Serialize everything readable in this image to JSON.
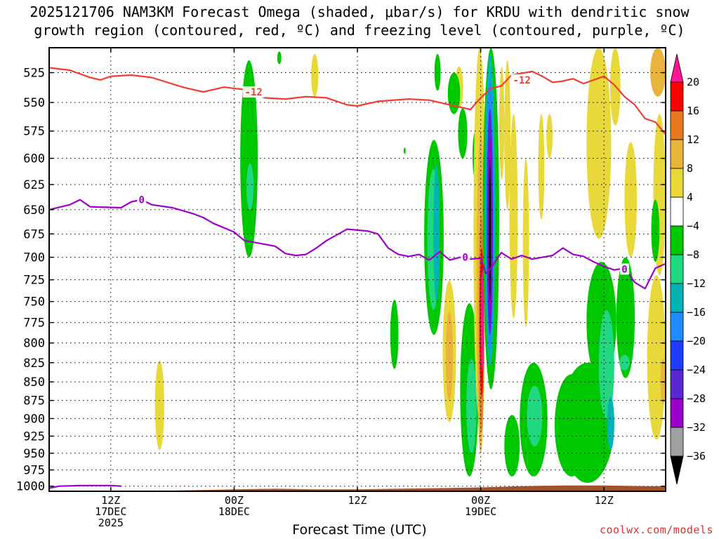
{
  "title": {
    "line1": "2025121706 NAM3KM Forecast Omega (shaded, μbar/s) for KRDU with dendritic snow",
    "line2": "growth region (contoured, red, ºC) and freezing level (contoured, purple, ºC)"
  },
  "credit": "coolwx.com/models",
  "chart_data": {
    "type": "heatmap",
    "title": "2025121706 NAM3KM Forecast Omega (shaded, μbar/s) for KRDU with dendritic snow growth region (contoured, red, ºC) and freezing level (contoured, purple, ºC)",
    "xlabel": "Forecast Time (UTC)",
    "ylabel": "",
    "x_ticks": [
      {
        "hour": 12,
        "lines": [
          "12Z",
          "17DEC",
          "2025"
        ]
      },
      {
        "hour": 24,
        "lines": [
          "00Z",
          "18DEC"
        ]
      },
      {
        "hour": 36,
        "lines": [
          "12Z"
        ]
      },
      {
        "hour": 48,
        "lines": [
          "00Z",
          "19DEC"
        ]
      },
      {
        "hour": 60,
        "lines": [
          "12Z"
        ]
      }
    ],
    "xlim": [
      6,
      66
    ],
    "y_ticks": [
      525,
      550,
      575,
      600,
      625,
      650,
      675,
      700,
      725,
      750,
      775,
      800,
      825,
      850,
      875,
      900,
      925,
      950,
      975,
      1000
    ],
    "ylim": [
      505,
      1008
    ],
    "y_scale": "log",
    "grid": true,
    "colorbar": {
      "labels": [
        "20",
        "16",
        "12",
        "8",
        "4",
        "−4",
        "−8",
        "−12",
        "−16",
        "−20",
        "−24",
        "−28",
        "−32",
        "−36"
      ],
      "levels": [
        20,
        16,
        12,
        8,
        4,
        -4,
        -8,
        -12,
        -16,
        -20,
        -24,
        -28,
        -32,
        -36
      ],
      "colors": [
        "#ff0000",
        "#e87a1e",
        "#e8b43c",
        "#e8d83a",
        "#ffffff",
        "#00c800",
        "#20d880",
        "#00b4b4",
        "#1e8cff",
        "#1e3cff",
        "#5a28d2",
        "#9600c8",
        "#a0a0a0",
        "#000000"
      ],
      "top_color": "#ff1493",
      "bottom_color": "#000000"
    },
    "contours": [
      {
        "name": "-12",
        "color": "#f03c32",
        "label_points": [
          [
            25.9,
            541
          ],
          [
            52.0,
            531
          ]
        ],
        "points": [
          [
            6,
            521
          ],
          [
            8,
            523
          ],
          [
            10,
            529
          ],
          [
            11,
            531
          ],
          [
            12,
            528
          ],
          [
            14,
            527
          ],
          [
            16,
            529
          ],
          [
            19,
            537
          ],
          [
            21,
            541
          ],
          [
            23,
            537
          ],
          [
            25,
            539
          ],
          [
            26,
            543
          ],
          [
            27,
            546
          ],
          [
            29,
            547
          ],
          [
            31,
            545
          ],
          [
            33,
            546
          ],
          [
            35,
            552
          ],
          [
            36,
            553
          ],
          [
            38,
            549
          ],
          [
            41,
            547
          ],
          [
            43,
            548
          ],
          [
            44,
            550
          ],
          [
            46,
            554
          ],
          [
            47,
            556
          ],
          [
            48,
            546
          ],
          [
            49,
            538
          ],
          [
            50,
            536
          ],
          [
            51,
            527
          ],
          [
            53,
            524
          ],
          [
            54,
            528
          ],
          [
            55,
            533
          ],
          [
            56,
            532
          ],
          [
            57,
            530
          ],
          [
            58,
            534
          ],
          [
            59,
            531
          ],
          [
            60,
            528
          ],
          [
            61,
            535
          ],
          [
            62,
            545
          ],
          [
            63,
            552
          ],
          [
            64,
            564
          ],
          [
            65,
            567
          ],
          [
            66,
            578
          ]
        ]
      },
      {
        "name": "0",
        "color": "#a000c8",
        "label_points": [
          [
            15.0,
            640
          ],
          [
            46.5,
            700
          ],
          [
            62.0,
            713
          ]
        ],
        "points": [
          [
            6,
            650
          ],
          [
            8,
            645
          ],
          [
            9,
            640
          ],
          [
            10,
            647
          ],
          [
            13,
            648
          ],
          [
            14,
            642
          ],
          [
            15,
            640
          ],
          [
            16,
            645
          ],
          [
            18,
            648
          ],
          [
            20,
            654
          ],
          [
            21,
            658
          ],
          [
            22,
            664
          ],
          [
            24,
            673
          ],
          [
            25,
            682
          ],
          [
            26,
            684
          ],
          [
            28,
            688
          ],
          [
            29,
            696
          ],
          [
            30,
            698
          ],
          [
            31,
            697
          ],
          [
            32,
            690
          ],
          [
            33,
            682
          ],
          [
            34,
            676
          ],
          [
            35,
            670
          ],
          [
            37,
            672
          ],
          [
            38,
            675
          ],
          [
            39,
            690
          ],
          [
            40,
            697
          ],
          [
            41,
            699
          ],
          [
            42,
            697
          ],
          [
            43,
            703
          ],
          [
            44,
            694
          ],
          [
            45,
            703
          ],
          [
            46,
            700
          ],
          [
            47,
            702
          ],
          [
            48,
            701
          ],
          [
            48.5,
            718
          ],
          [
            49,
            712
          ],
          [
            50,
            695
          ],
          [
            51,
            702
          ],
          [
            52,
            698
          ],
          [
            53,
            702
          ],
          [
            54,
            700
          ],
          [
            55,
            698
          ],
          [
            56,
            690
          ],
          [
            57,
            697
          ],
          [
            58,
            699
          ],
          [
            59,
            705
          ],
          [
            60,
            710
          ],
          [
            61,
            714
          ],
          [
            62,
            712
          ],
          [
            63,
            728
          ],
          [
            64,
            735
          ],
          [
            65,
            712
          ],
          [
            66,
            707
          ]
        ]
      },
      {
        "name": "surface",
        "color": "#a000c8",
        "label_points": [],
        "points": [
          [
            6,
            1003
          ],
          [
            7,
            1000
          ],
          [
            9,
            999
          ],
          [
            10,
            999
          ],
          [
            12,
            999
          ],
          [
            13,
            1000
          ]
        ]
      }
    ],
    "cells": [
      {
        "t0": 24.6,
        "t1": 26.3,
        "p0": 515,
        "p1": 700,
        "v": -6
      },
      {
        "t0": 25.2,
        "t1": 25.9,
        "p0": 605,
        "p1": 650,
        "v": -9
      },
      {
        "t0": 28.2,
        "t1": 28.6,
        "p0": 508,
        "p1": 518,
        "v": -5
      },
      {
        "t0": 31.5,
        "t1": 32.2,
        "p0": 510,
        "p1": 545,
        "v": 5
      },
      {
        "t0": 16.3,
        "t1": 17.2,
        "p0": 822,
        "p1": 945,
        "v": 5
      },
      {
        "t0": 39.2,
        "t1": 40.0,
        "p0": 748,
        "p1": 833,
        "v": -6
      },
      {
        "t0": 42.5,
        "t1": 44.4,
        "p0": 583,
        "p1": 790,
        "v": -6
      },
      {
        "t0": 42.8,
        "t1": 44.0,
        "p0": 610,
        "p1": 760,
        "v": -10
      },
      {
        "t0": 43.4,
        "t1": 44.0,
        "p0": 605,
        "p1": 750,
        "v": -14
      },
      {
        "t0": 43.5,
        "t1": 44.1,
        "p0": 510,
        "p1": 540,
        "v": -6
      },
      {
        "t0": 44.3,
        "t1": 45.6,
        "p0": 726,
        "p1": 905,
        "v": 6
      },
      {
        "t0": 44.6,
        "t1": 45.3,
        "p0": 762,
        "p1": 875,
        "v": 10
      },
      {
        "t0": 40.5,
        "t1": 40.7,
        "p0": 590,
        "p1": 596,
        "v": -6
      },
      {
        "t0": 45.5,
        "t1": 46.3,
        "p0": 520,
        "p1": 555,
        "v": 5
      },
      {
        "t0": 45.8,
        "t1": 46.7,
        "p0": 555,
        "p1": 600,
        "v": -5
      },
      {
        "t0": 44.8,
        "t1": 46.0,
        "p0": 525,
        "p1": 560,
        "v": -5
      },
      {
        "t0": 46.0,
        "t1": 47.8,
        "p0": 752,
        "p1": 985,
        "v": -7
      },
      {
        "t0": 46.6,
        "t1": 47.6,
        "p0": 820,
        "p1": 950,
        "v": -9
      },
      {
        "t0": 47.2,
        "t1": 47.8,
        "p0": 575,
        "p1": 620,
        "v": -5
      },
      {
        "t0": 47.3,
        "t1": 48.5,
        "p0": 505,
        "p1": 905,
        "v": 5
      },
      {
        "t0": 47.6,
        "t1": 48.4,
        "p0": 575,
        "p1": 950,
        "v": 8
      },
      {
        "t0": 47.8,
        "t1": 48.3,
        "p0": 655,
        "p1": 920,
        "v": 14
      },
      {
        "t0": 47.9,
        "t1": 48.3,
        "p0": 690,
        "p1": 870,
        "v": 18
      },
      {
        "t0": 48.0,
        "t1": 48.3,
        "p0": 715,
        "p1": 835,
        "v": 24
      },
      {
        "t0": 48.2,
        "t1": 49.8,
        "p0": 505,
        "p1": 860,
        "v": -7
      },
      {
        "t0": 48.4,
        "t1": 49.4,
        "p0": 510,
        "p1": 830,
        "v": -13
      },
      {
        "t0": 48.5,
        "t1": 49.3,
        "p0": 530,
        "p1": 810,
        "v": -18
      },
      {
        "t0": 48.6,
        "t1": 49.2,
        "p0": 555,
        "p1": 790,
        "v": -26
      },
      {
        "t0": 48.7,
        "t1": 49.1,
        "p0": 580,
        "p1": 770,
        "v": -32
      },
      {
        "t0": 48.8,
        "t1": 49.0,
        "p0": 600,
        "p1": 750,
        "v": -40
      },
      {
        "t0": 50.3,
        "t1": 50.9,
        "p0": 515,
        "p1": 650,
        "v": 5
      },
      {
        "t0": 49.8,
        "t1": 50.3,
        "p0": 520,
        "p1": 620,
        "v": 5
      },
      {
        "t0": 50.8,
        "t1": 51.6,
        "p0": 560,
        "p1": 770,
        "v": 5
      },
      {
        "t0": 51.1,
        "t1": 51.4,
        "p0": 690,
        "p1": 720,
        "v": 5
      },
      {
        "t0": 52.1,
        "t1": 52.7,
        "p0": 600,
        "p1": 780,
        "v": 5
      },
      {
        "t0": 53.6,
        "t1": 54.2,
        "p0": 560,
        "p1": 660,
        "v": 5
      },
      {
        "t0": 54.4,
        "t1": 55.0,
        "p0": 560,
        "p1": 600,
        "v": 5
      },
      {
        "t0": 58.3,
        "t1": 60.7,
        "p0": 505,
        "p1": 680,
        "v": 5
      },
      {
        "t0": 60.6,
        "t1": 61.6,
        "p0": 505,
        "p1": 570,
        "v": 5
      },
      {
        "t0": 62.0,
        "t1": 63.2,
        "p0": 585,
        "p1": 700,
        "v": 5
      },
      {
        "t0": 64.5,
        "t1": 66.0,
        "p0": 505,
        "p1": 545,
        "v": 10
      },
      {
        "t0": 64.8,
        "t1": 66.0,
        "p0": 560,
        "p1": 720,
        "v": 5
      },
      {
        "t0": 64.2,
        "t1": 66.0,
        "p0": 720,
        "p1": 930,
        "v": 5
      },
      {
        "t0": 65.5,
        "t1": 66.0,
        "p0": 820,
        "p1": 880,
        "v": 10
      },
      {
        "t0": 55.8,
        "t1": 61.0,
        "p0": 825,
        "p1": 995,
        "v": -6
      },
      {
        "t0": 55.2,
        "t1": 58.5,
        "p0": 840,
        "p1": 985,
        "v": -6
      },
      {
        "t0": 51.8,
        "t1": 54.5,
        "p0": 825,
        "p1": 985,
        "v": -6
      },
      {
        "t0": 50.3,
        "t1": 51.8,
        "p0": 895,
        "p1": 985,
        "v": -6
      },
      {
        "t0": 52.5,
        "t1": 54.0,
        "p0": 855,
        "p1": 940,
        "v": -10
      },
      {
        "t0": 58.3,
        "t1": 61.2,
        "p0": 705,
        "p1": 850,
        "v": -6
      },
      {
        "t0": 59.5,
        "t1": 61.0,
        "p0": 760,
        "p1": 900,
        "v": -10
      },
      {
        "t0": 60.3,
        "t1": 61.0,
        "p0": 870,
        "p1": 945,
        "v": -14
      },
      {
        "t0": 61.2,
        "t1": 63.0,
        "p0": 700,
        "p1": 845,
        "v": -6
      },
      {
        "t0": 61.5,
        "t1": 62.5,
        "p0": 815,
        "p1": 835,
        "v": -10
      },
      {
        "t0": 64.6,
        "t1": 65.4,
        "p0": 640,
        "p1": 705,
        "v": -6
      }
    ],
    "terrain": {
      "color": "#a0522d",
      "points": [
        [
          6,
          1008
        ],
        [
          12,
          1007
        ],
        [
          18,
          1007
        ],
        [
          24,
          1005
        ],
        [
          28,
          1004
        ],
        [
          32,
          1005
        ],
        [
          36,
          1005
        ],
        [
          40,
          1004
        ],
        [
          44,
          1003
        ],
        [
          48,
          1002
        ],
        [
          52,
          1000
        ],
        [
          56,
          999
        ],
        [
          60,
          999
        ],
        [
          64,
          1000
        ],
        [
          66,
          1000
        ]
      ]
    }
  }
}
